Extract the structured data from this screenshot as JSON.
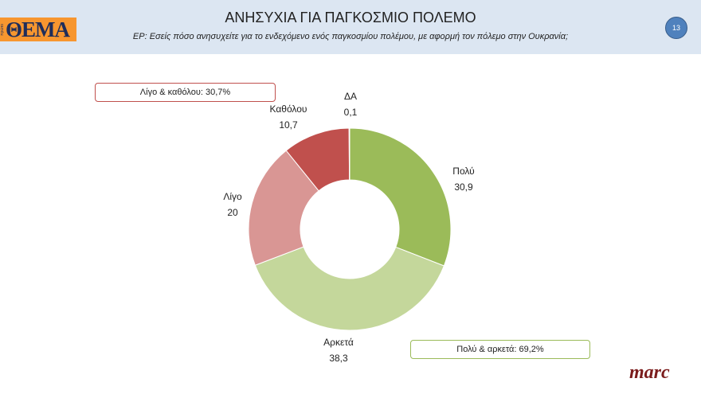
{
  "header": {
    "logo_main": "ΘΕΜΑ",
    "logo_small": "πρώτο",
    "title": "ΑΝΗΣΥΧΙΑ ΓΙΑ ΠΑΓΚΟΣΜΙΟ ΠΟΛΕΜΟ",
    "subtitle": "ΕΡ: Εσείς πόσο ανησυχείτε για το ενδεχόμενο ενός παγκοσμίου πολέμου, με αφορμή τον πόλεμο στην Ουκρανία;",
    "page_number": "13"
  },
  "annotations": {
    "low_total": "Λίγο & καθόλου: 30,7%",
    "high_total": "Πολύ & αρκετά: 69,2%"
  },
  "footer": {
    "brand": "marc"
  },
  "chart_data": {
    "type": "pie",
    "donut": true,
    "title": "ΑΝΗΣΥΧΙΑ ΓΙΑ ΠΑΓΚΟΣΜΙΟ ΠΟΛΕΜΟ",
    "categories": [
      "Πολύ",
      "Αρκετά",
      "Λίγο",
      "Καθόλου",
      "ΔΑ"
    ],
    "values": [
      30.9,
      38.3,
      20,
      10.7,
      0.1
    ],
    "value_labels": [
      "30,9",
      "38,3",
      "20",
      "10,7",
      "0,1"
    ],
    "colors": [
      "#9bbb59",
      "#c4d79b",
      "#d99694",
      "#c0504d",
      "#c0504d"
    ]
  }
}
